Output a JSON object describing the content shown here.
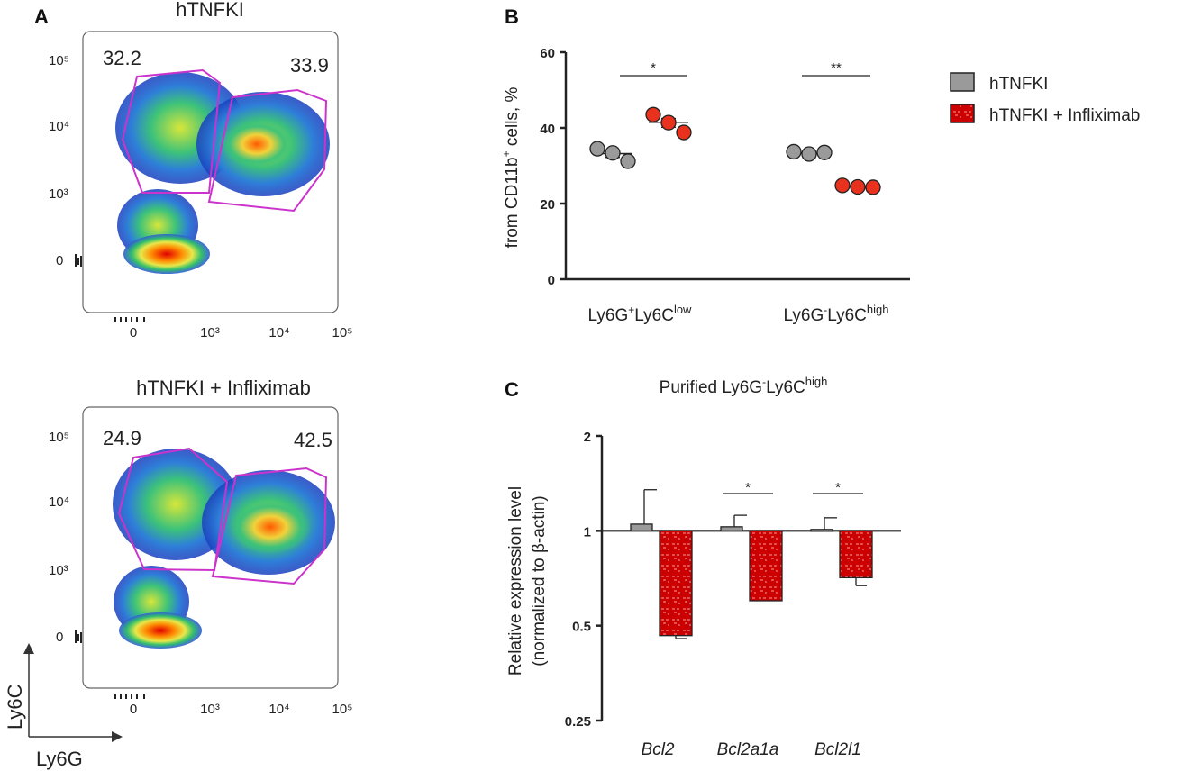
{
  "panels": {
    "A": {
      "letter": "A",
      "plot1_title": "hTNFKI",
      "plot2_title": "hTNFKI + Infliximab",
      "plot1_gates": [
        "32.2",
        "33.9"
      ],
      "plot2_gates": [
        "24.9",
        "42.5"
      ],
      "x_ticks": [
        "0",
        "10³",
        "10⁴",
        "10⁵"
      ],
      "y_ticks": [
        "0",
        "10³",
        "10⁴",
        "10⁵"
      ],
      "axis_y_label": "Ly6C",
      "axis_x_label": "Ly6G"
    },
    "B": {
      "letter": "B"
    },
    "C": {
      "letter": "C"
    }
  },
  "colors": {
    "gray": "#9a9a9a",
    "red": "#cc0000",
    "orange_red": "#e8321e",
    "gate": "#cc33cc",
    "title_gray": "#8c8c8c",
    "title_red": "#d42020"
  },
  "legend": [
    {
      "name": "hTNFKI",
      "color": "gray"
    },
    {
      "name": "hTNFKI + Infliximab",
      "color": "red"
    }
  ],
  "chart_data": [
    {
      "id": "B",
      "type": "scatter",
      "title": "",
      "ylabel_main": "from CD11b",
      "ylabel_sup": "+",
      "ylabel_tail": " cells, %",
      "ylim": [
        0,
        60
      ],
      "yticks": [
        0,
        20,
        40,
        60
      ],
      "groups": [
        {
          "label_main": "Ly6G",
          "label_sup1": "+",
          "label_mid": "Ly6C",
          "label_sup2": "low"
        },
        {
          "label_main": "Ly6G",
          "label_sup1": "-",
          "label_mid": "Ly6C",
          "label_sup2": "high"
        }
      ],
      "series": [
        {
          "name": "hTNFKI",
          "points": [
            [
              34.5,
              33.4,
              31.2
            ],
            [
              33.7,
              33.1,
              33.5
            ]
          ],
          "mean": [
            33.2,
            33.3
          ]
        },
        {
          "name": "hTNFKI + Infliximab",
          "points": [
            [
              43.5,
              41.4,
              38.8
            ],
            [
              24.8,
              24.4,
              24.3
            ]
          ],
          "mean": [
            41.5,
            24.5
          ]
        }
      ],
      "significance": [
        "*",
        "**"
      ]
    },
    {
      "id": "C",
      "type": "bar",
      "title_main": "Purified Ly6G",
      "title_sup1": "-",
      "title_mid": "Ly6C",
      "title_sup2": "high",
      "ylabel_line1": "Relative expression level",
      "ylabel_line2": "(normalized to β-actin)",
      "yscale": "log2",
      "ylim": [
        0.25,
        2
      ],
      "yticks": [
        0.25,
        0.5,
        1,
        2
      ],
      "ytick_labels": [
        "0.25",
        "0.5",
        "1",
        "2"
      ],
      "baseline": 1,
      "categories": [
        "Bcl2",
        "Bcl2a1a",
        "Bcl2l1"
      ],
      "series": [
        {
          "name": "hTNFKI",
          "values": [
            1.05,
            1.03,
            1.01
          ],
          "errors": [
            1.35,
            1.12,
            1.1
          ]
        },
        {
          "name": "hTNFKI + Infliximab",
          "values": [
            0.465,
            0.6,
            0.71
          ],
          "errors": [
            0.455,
            0.6,
            0.67
          ]
        }
      ],
      "significance": [
        "",
        "*",
        "*"
      ]
    }
  ]
}
